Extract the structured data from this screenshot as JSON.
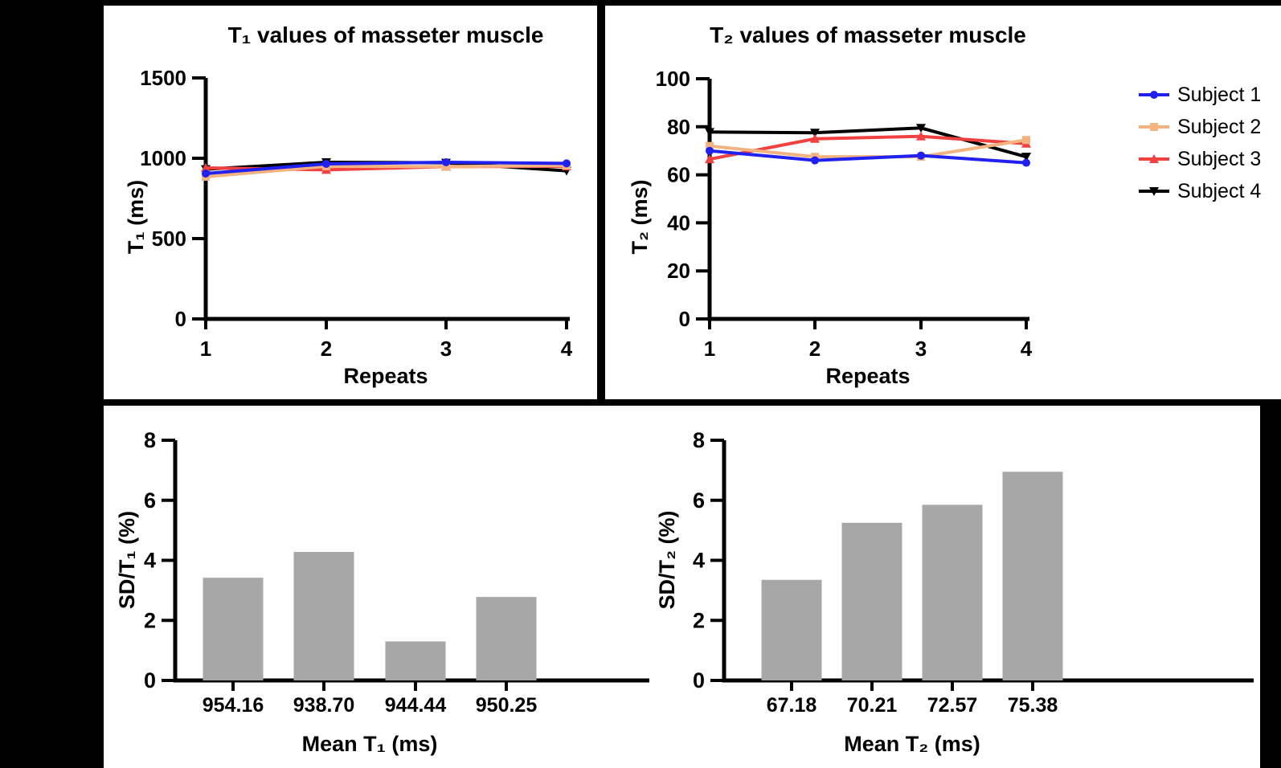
{
  "figure": {
    "background": "#000000",
    "panel_background": "#ffffff",
    "text_color": "#000000",
    "axis_color": "#000000"
  },
  "legend": {
    "position": "right-of-t2-chart",
    "items": [
      "Subject 1",
      "Subject 2",
      "Subject 3",
      "Subject 4"
    ]
  },
  "chart_data": [
    {
      "id": "t1",
      "type": "line",
      "title": "T₁ values of masseter muscle",
      "xlabel": "Repeats",
      "ylabel": "T₁ (ms)",
      "x": [
        1,
        2,
        3,
        4
      ],
      "xticklabels": [
        "1",
        "2",
        "3",
        "4"
      ],
      "ylim": [
        0,
        1500
      ],
      "yticks": [
        0,
        500,
        1000,
        1500
      ],
      "grid": false,
      "legend_position": "none",
      "series": [
        {
          "name": "Subject 1",
          "color": "#2020f0",
          "marker": "circle",
          "values": [
            905,
            965,
            975,
            968
          ]
        },
        {
          "name": "Subject 2",
          "color": "#f2b380",
          "marker": "square",
          "values": [
            885,
            950,
            948,
            955
          ]
        },
        {
          "name": "Subject 3",
          "color": "#f04040",
          "marker": "triangle-up",
          "values": [
            940,
            928,
            948,
            950
          ]
        },
        {
          "name": "Subject 4",
          "color": "#000000",
          "marker": "triangle-down",
          "values": [
            932,
            975,
            972,
            922
          ]
        }
      ]
    },
    {
      "id": "t2",
      "type": "line",
      "title": "T₂ values of masseter muscle",
      "xlabel": "Repeats",
      "ylabel": "T₂ (ms)",
      "x": [
        1,
        2,
        3,
        4
      ],
      "xticklabels": [
        "1",
        "2",
        "3",
        "4"
      ],
      "ylim": [
        0,
        100
      ],
      "yticks": [
        0,
        20,
        40,
        60,
        80,
        100
      ],
      "grid": false,
      "legend_position": "right",
      "series": [
        {
          "name": "Subject 1",
          "color": "#2020f0",
          "marker": "circle",
          "values": [
            70,
            66,
            68,
            65
          ]
        },
        {
          "name": "Subject 2",
          "color": "#f2b380",
          "marker": "square",
          "values": [
            72,
            67.5,
            67.5,
            74.5
          ]
        },
        {
          "name": "Subject 3",
          "color": "#f04040",
          "marker": "triangle-up",
          "values": [
            66.5,
            75,
            76,
            73
          ]
        },
        {
          "name": "Subject 4",
          "color": "#000000",
          "marker": "triangle-down",
          "values": [
            77.8,
            77.5,
            79.5,
            67.5
          ]
        }
      ]
    },
    {
      "id": "sd_t1",
      "type": "bar",
      "title": "",
      "categories": [
        "954.16",
        "938.70",
        "944.44",
        "950.25"
      ],
      "values": [
        3.42,
        4.28,
        1.3,
        2.78
      ],
      "xlabel": "Mean T₁ (ms)",
      "ylabel": "SD/T₁ (%)",
      "ylim": [
        0,
        8
      ],
      "yticks": [
        0,
        2,
        4,
        6,
        8
      ],
      "grid": false,
      "bar_color": "#a7a7a7"
    },
    {
      "id": "sd_t2",
      "type": "bar",
      "title": "",
      "categories": [
        "67.18",
        "70.21",
        "72.57",
        "75.38"
      ],
      "values": [
        3.35,
        5.25,
        5.85,
        6.95
      ],
      "xlabel": "Mean T₂ (ms)",
      "ylabel": "SD/T₂ (%)",
      "ylim": [
        0,
        8
      ],
      "yticks": [
        0,
        2,
        4,
        6,
        8
      ],
      "grid": false,
      "bar_color": "#a7a7a7"
    }
  ]
}
